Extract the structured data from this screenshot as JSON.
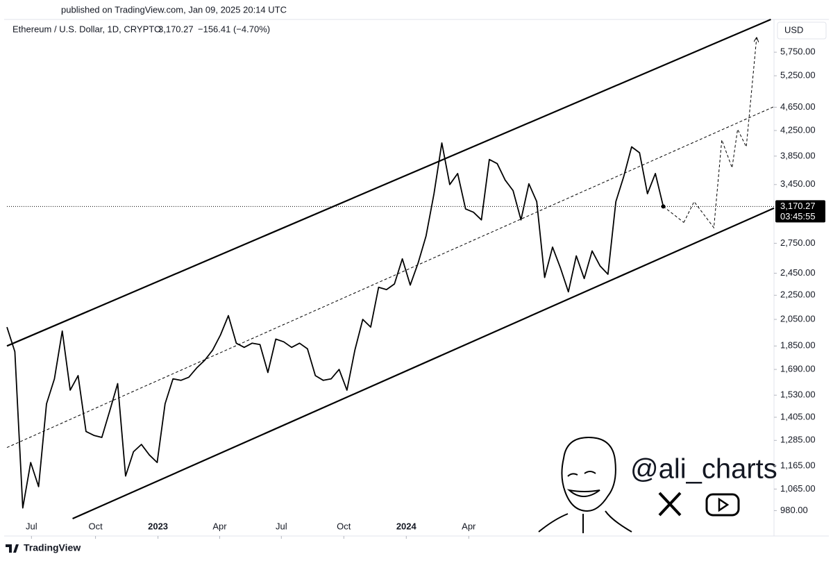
{
  "header": {
    "published": "published on TradingView.com, Jan 09, 2025 20:14 UTC",
    "symbol": "Ethereum / U.S. Dollar, 1D, CRYPTO",
    "change": "−156.41 (−4.70%)",
    "currency": "USD",
    "countdown": "03:45:55",
    "brand": "TradingView",
    "watermark": "@ali_charts"
  },
  "chart_data": {
    "type": "line",
    "color": "#000000",
    "log_scale": true,
    "values": [
      1990,
      1810,
      990,
      1180,
      1075,
      1480,
      1630,
      1960,
      1560,
      1650,
      1330,
      1310,
      1300,
      1440,
      1600,
      1120,
      1230,
      1265,
      1215,
      1180,
      1480,
      1630,
      1620,
      1640,
      1700,
      1750,
      1820,
      1930,
      2080,
      1870,
      1840,
      1870,
      1860,
      1670,
      1900,
      1880,
      1840,
      1870,
      1830,
      1650,
      1620,
      1630,
      1690,
      1560,
      1820,
      2050,
      1990,
      2320,
      2300,
      2350,
      2590,
      2340,
      2550,
      2830,
      3330,
      4050,
      3450,
      3600,
      3140,
      3100,
      3010,
      3800,
      3740,
      3510,
      3370,
      3010,
      3460,
      3230,
      2410,
      2710,
      2500,
      2280,
      2620,
      2400,
      2670,
      2520,
      2440,
      3230,
      3560,
      3990,
      3900,
      3330,
      3600,
      3170.27
    ],
    "xlim": [
      0,
      97
    ],
    "xticks": [
      {
        "value": 3.1,
        "label": "Jul"
      },
      {
        "value": 11.2,
        "label": "Oct"
      },
      {
        "value": 19.1,
        "label": "2023"
      },
      {
        "value": 26.9,
        "label": "Apr"
      },
      {
        "value": 34.7,
        "label": "Jul"
      },
      {
        "value": 42.6,
        "label": "Oct"
      },
      {
        "value": 50.5,
        "label": "2024"
      },
      {
        "value": 58.4,
        "label": "Apr"
      }
    ],
    "ylim": [
      898,
      6490
    ],
    "yticks": [
      {
        "value": 5750,
        "label": "5,750.00"
      },
      {
        "value": 5250,
        "label": "5,250.00"
      },
      {
        "value": 4650,
        "label": "4,650.00"
      },
      {
        "value": 4250,
        "label": "4,250.00"
      },
      {
        "value": 3850,
        "label": "3,850.00"
      },
      {
        "value": 3450,
        "label": "3,450.00"
      },
      {
        "value": 2750,
        "label": "2,750.00"
      },
      {
        "value": 2450,
        "label": "2,450.00"
      },
      {
        "value": 2250,
        "label": "2,250.00"
      },
      {
        "value": 2050,
        "label": "2,050.00"
      },
      {
        "value": 1850,
        "label": "1,850.00"
      },
      {
        "value": 1690,
        "label": "1,690.00"
      },
      {
        "value": 1530,
        "label": "1,530.00"
      },
      {
        "value": 1405,
        "label": "1,405.00"
      },
      {
        "value": 1285,
        "label": "1,285.00"
      },
      {
        "value": 1165,
        "label": "1,165.00"
      },
      {
        "value": 1065,
        "label": "1,065.00"
      },
      {
        "value": 980,
        "label": "980.00"
      }
    ],
    "last_price": {
      "value": 3170.27,
      "label": "3,170.27"
    },
    "channel": [
      {
        "style": "solid",
        "x": [
          0,
          96.6
        ],
        "values": [
          1850,
          6525
        ]
      },
      {
        "style": "dashed",
        "x": [
          0,
          97
        ],
        "values": [
          1250,
          4660
        ]
      },
      {
        "style": "solid",
        "x": [
          8.3,
          97
        ],
        "values": [
          950,
          3150
        ]
      }
    ],
    "projection": {
      "x": [
        85.6,
        86.9,
        89.4,
        90.4,
        91.7,
        92.4,
        93.5,
        94.8
      ],
      "values": [
        2980,
        3230,
        2920,
        4100,
        3680,
        4270,
        3990,
        6070
      ]
    }
  }
}
